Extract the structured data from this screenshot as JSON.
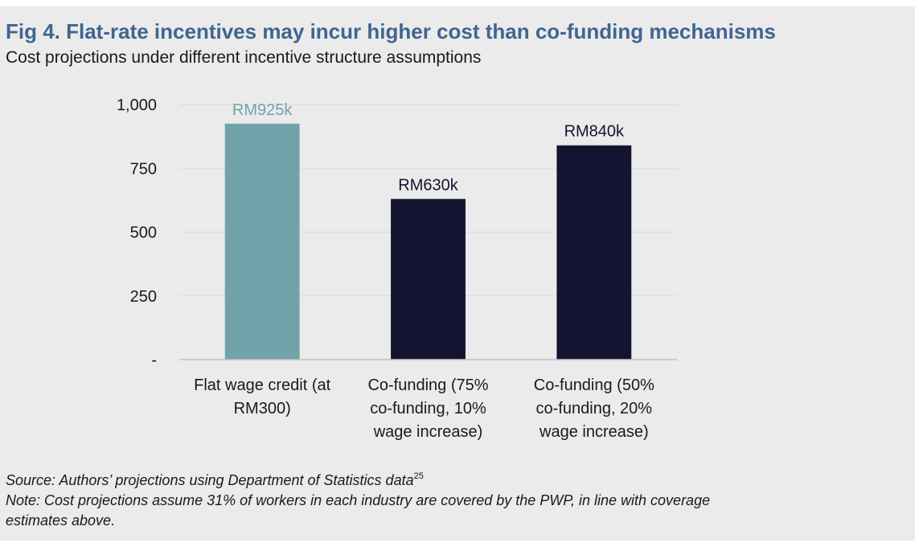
{
  "title": "Fig 4. Flat-rate incentives may incur higher cost than co-funding mechanisms",
  "subtitle": "Cost projections under different incentive structure assumptions",
  "source": {
    "text": "Source: Authors’ projections using Department of Statistics data",
    "superscript": "25"
  },
  "note": {
    "line1": "Note: Cost projections assume 31% of workers in each industry are covered by the PWP, in line with coverage",
    "line2": "estimates above."
  },
  "chart_data": {
    "type": "bar",
    "title": "Fig 4. Flat-rate incentives may incur higher cost than co-funding mechanisms",
    "subtitle": "Cost projections under different incentive structure assumptions",
    "xlabel": "",
    "ylabel": "",
    "ylim": [
      0,
      1000
    ],
    "yticks": [
      0,
      250,
      500,
      750,
      1000
    ],
    "ytick_labels": [
      "-",
      "250",
      "500",
      "750",
      "1,000"
    ],
    "grid": true,
    "categories": [
      [
        "Flat wage credit (at",
        "RM300)"
      ],
      [
        "Co-funding (75%",
        "co-funding, 10%",
        "wage increase)"
      ],
      [
        "Co-funding (50%",
        "co-funding, 20%",
        "wage increase)"
      ]
    ],
    "values": [
      925,
      630,
      840
    ],
    "data_labels": [
      "RM925k",
      "RM630k",
      "RM840k"
    ],
    "bar_colors": [
      "#72a3aa",
      "#131431",
      "#131431"
    ],
    "label_colors": [
      "#72a3aa",
      "#131431",
      "#131431"
    ]
  }
}
